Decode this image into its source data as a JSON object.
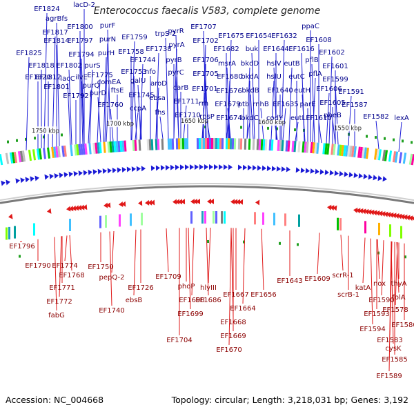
{
  "title": "Enterococcus faecalis V583, complete genome",
  "accession": "Accession: NC_004668",
  "topology": "Topology: circular; Length: 3,218,031 bp; Genes: 3,192",
  "colors": {
    "forward": "#1a1ad6",
    "reverse": "#e01818",
    "backbone": "#888888"
  },
  "kbp_ticks": [
    "1750 kbp",
    "1700 kbp",
    "1650 kbp",
    "1600 kbp",
    "1550 kbp"
  ],
  "top_labels": [
    "EF1824",
    "lacD-2",
    "agrBfs",
    "EF1817",
    "EF1800",
    "purF",
    "EF1825",
    "EF1814",
    "EF1797",
    "purN",
    "EF1812",
    "EF1794",
    "purH",
    "EF1818",
    "EF1802",
    "purS",
    "EF1820",
    "lacC",
    "EF1775",
    "EF1801",
    "ilvE",
    "purQ",
    "EF1792",
    "purD",
    "comEA",
    "ftsE",
    "EF1760",
    "EF1759",
    "EF1758",
    "EF1753",
    "EF1744",
    "EF1745",
    "trpS-2",
    "EF1738",
    "nfo",
    "galU",
    "ccpA",
    "ebsa",
    "fhs",
    "aroD",
    "carB",
    "pyrR",
    "pyrA",
    "pyrB",
    "pyrC",
    "EF1711",
    "EF1710",
    "EF1707",
    "EF1702",
    "EF1706",
    "EF1705",
    "EF1701",
    "rrh",
    "rpsP",
    "EF1675",
    "EF1682",
    "msrA",
    "EF1680",
    "EF1676",
    "EF1679",
    "EF1674",
    "EF1654",
    "buk",
    "bkdD",
    "bkdA",
    "bkdB",
    "bkdC",
    "ptb",
    "rnhB",
    "EF1632",
    "EF1644",
    "hslV",
    "hslU",
    "EF1640",
    "codY",
    "EF1635",
    "ppaC",
    "EF1616",
    "eutB",
    "eutC",
    "eutH",
    "eutL",
    "EF1608",
    "pflB",
    "pflA",
    "parE",
    "EF1610",
    "EF1602",
    "EF1601",
    "EF1599",
    "EF1606",
    "EF1605",
    "pheB",
    "EF1591",
    "EF1587",
    "EF1582",
    "lexA"
  ],
  "bottom_labels": [
    "EF1796",
    "EF1790",
    "EF1774",
    "EF1768",
    "EF1771",
    "EF1772",
    "fabG",
    "EF1750",
    "pepQ-2",
    "EF1740",
    "EF1726",
    "ebsB",
    "EF1709",
    "phoP",
    "EF1698",
    "EF1699",
    "EF1704",
    "hlyIII",
    "EF1686",
    "EF1667",
    "EF1664",
    "EF1668",
    "EF1669",
    "EF1670",
    "EF1656",
    "EF1643",
    "EF1609",
    "scrR-1",
    "scrB-1",
    "katA",
    "nox",
    "thyA",
    "EF1590",
    "folA",
    "EF1593",
    "EF1578",
    "EF1594",
    "EF1580",
    "EF1583",
    "cysK",
    "EF1585",
    "EF1589"
  ]
}
